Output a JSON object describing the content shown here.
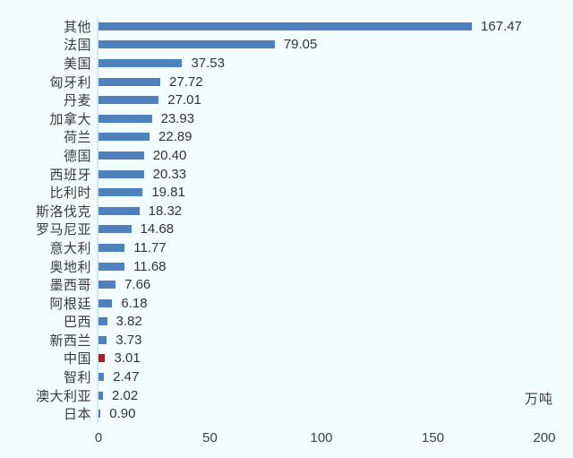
{
  "chart_data": {
    "type": "bar",
    "orientation": "horizontal",
    "title": "",
    "unit_label": "万吨",
    "categories": [
      "其他",
      "法国",
      "美国",
      "匈牙利",
      "丹麦",
      "加拿大",
      "荷兰",
      "德国",
      "西班牙",
      "比利时",
      "斯洛伐克",
      "罗马尼亚",
      "意大利",
      "奥地利",
      "墨西哥",
      "阿根廷",
      "巴西",
      "新西兰",
      "中国",
      "智利",
      "澳大利亚",
      "日本"
    ],
    "values": [
      167.47,
      79.05,
      37.53,
      27.72,
      27.01,
      23.93,
      22.89,
      20.4,
      20.33,
      19.81,
      18.32,
      14.68,
      11.77,
      11.68,
      7.66,
      6.18,
      3.82,
      3.73,
      3.01,
      2.47,
      2.02,
      0.9
    ],
    "value_labels": [
      "167.47",
      "79.05",
      "37.53",
      "27.72",
      "27.01",
      "23.93",
      "22.89",
      "20.40",
      "20.33",
      "19.81",
      "18.32",
      "14.68",
      "11.77",
      "11.68",
      "7.66",
      "6.18",
      "3.82",
      "3.73",
      "3.01",
      "2.47",
      "2.02",
      "0.90"
    ],
    "highlight_category": "中国",
    "x_ticks": [
      "0",
      "50",
      "100",
      "150",
      "200"
    ],
    "xlim": [
      0,
      200
    ],
    "grid": false,
    "legend": false,
    "data_labels": true,
    "colors": {
      "bar": "#4f81bd",
      "highlight_bar": "#aa1e23",
      "background": "#f4fdfe",
      "axis_line": "#cfe9f5",
      "text": "#333333"
    }
  }
}
